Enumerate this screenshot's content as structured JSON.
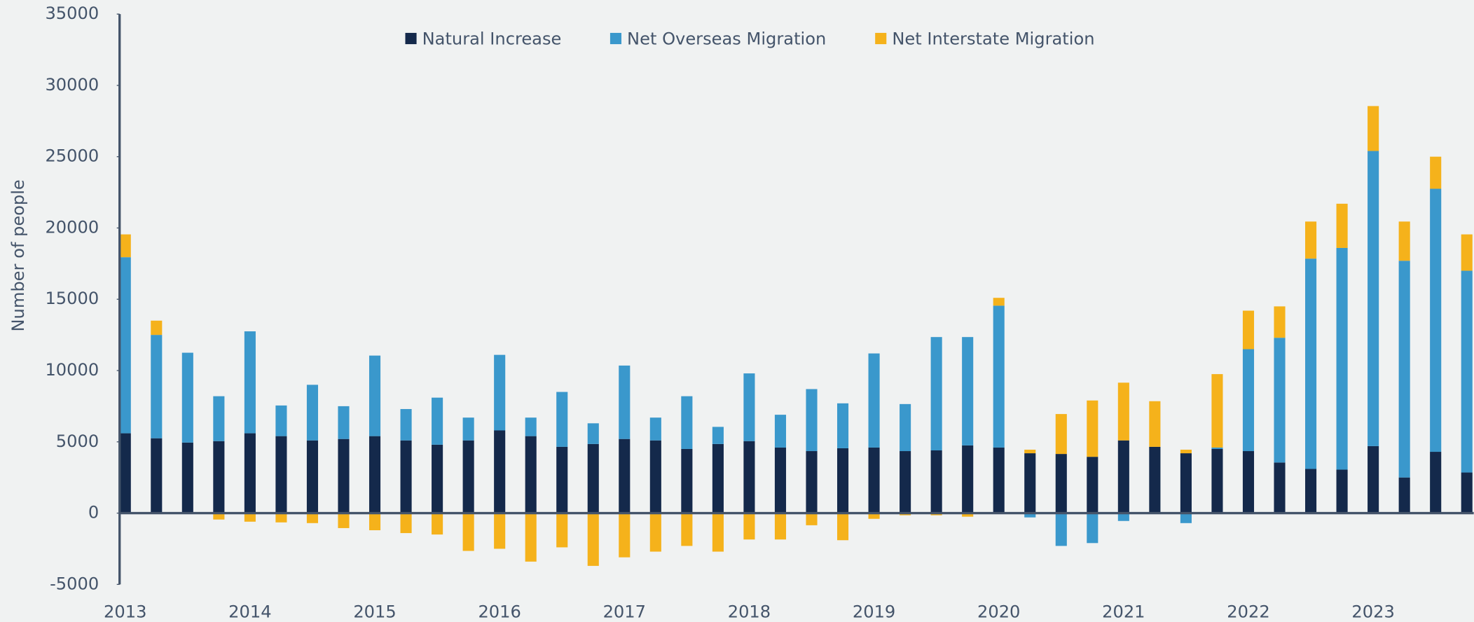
{
  "chart_data": {
    "type": "stacked_bar",
    "y_label": "Number of people",
    "categories": [
      "2013",
      null,
      null,
      null,
      "2014",
      null,
      null,
      null,
      "2015",
      null,
      null,
      null,
      "2016",
      null,
      null,
      null,
      "2017",
      null,
      null,
      null,
      "2018",
      null,
      null,
      null,
      "2019",
      null,
      null,
      null,
      "2020",
      null,
      null,
      null,
      "2021",
      null,
      null,
      null,
      "2022",
      null,
      null,
      null,
      "2023",
      null,
      null,
      null
    ],
    "series": [
      {
        "name": "Natural Increase",
        "color": "#14294b",
        "values": [
          5600,
          5250,
          4950,
          5050,
          5600,
          5400,
          5100,
          5200,
          5400,
          5100,
          4800,
          5100,
          5800,
          5400,
          4650,
          4850,
          5200,
          5100,
          4500,
          4850,
          5050,
          4600,
          4350,
          4550,
          4600,
          4350,
          4400,
          4750,
          4600,
          4200,
          4150,
          3950,
          5100,
          4650,
          4200,
          4500,
          4350,
          3550,
          3100,
          3050,
          4700,
          2500,
          4300,
          2850
        ]
      },
      {
        "name": "Net Overseas Migration",
        "color": "#3a98cc",
        "values": [
          12350,
          7250,
          6300,
          3150,
          7150,
          2150,
          3900,
          2300,
          5650,
          2200,
          3300,
          1600,
          5300,
          1300,
          3850,
          1450,
          5150,
          1600,
          3700,
          1200,
          4750,
          2300,
          4350,
          3150,
          6600,
          3300,
          7950,
          7600,
          9950,
          -300,
          -2300,
          -2100,
          -550,
          0,
          -700,
          100,
          7150,
          8750,
          14750,
          15550,
          20700,
          15200,
          18450,
          14150
        ]
      },
      {
        "name": "Net Interstate Migration",
        "color": "#f5b21b",
        "values": [
          1600,
          1000,
          0,
          -450,
          -600,
          -650,
          -700,
          -1050,
          -1200,
          -1400,
          -1500,
          -2650,
          -2500,
          -3400,
          -2400,
          -3700,
          -3100,
          -2700,
          -2300,
          -2700,
          -1850,
          -1850,
          -850,
          -1900,
          -400,
          -150,
          -150,
          -250,
          550,
          250,
          2800,
          3950,
          4050,
          3200,
          250,
          5150,
          2700,
          2200,
          2600,
          3100,
          3150,
          2750,
          2250,
          2550
        ]
      }
    ],
    "ylim": [
      -5000,
      35000
    ],
    "yticks": [
      -5000,
      0,
      5000,
      10000,
      15000,
      20000,
      25000,
      30000,
      35000
    ],
    "legend": "top"
  }
}
